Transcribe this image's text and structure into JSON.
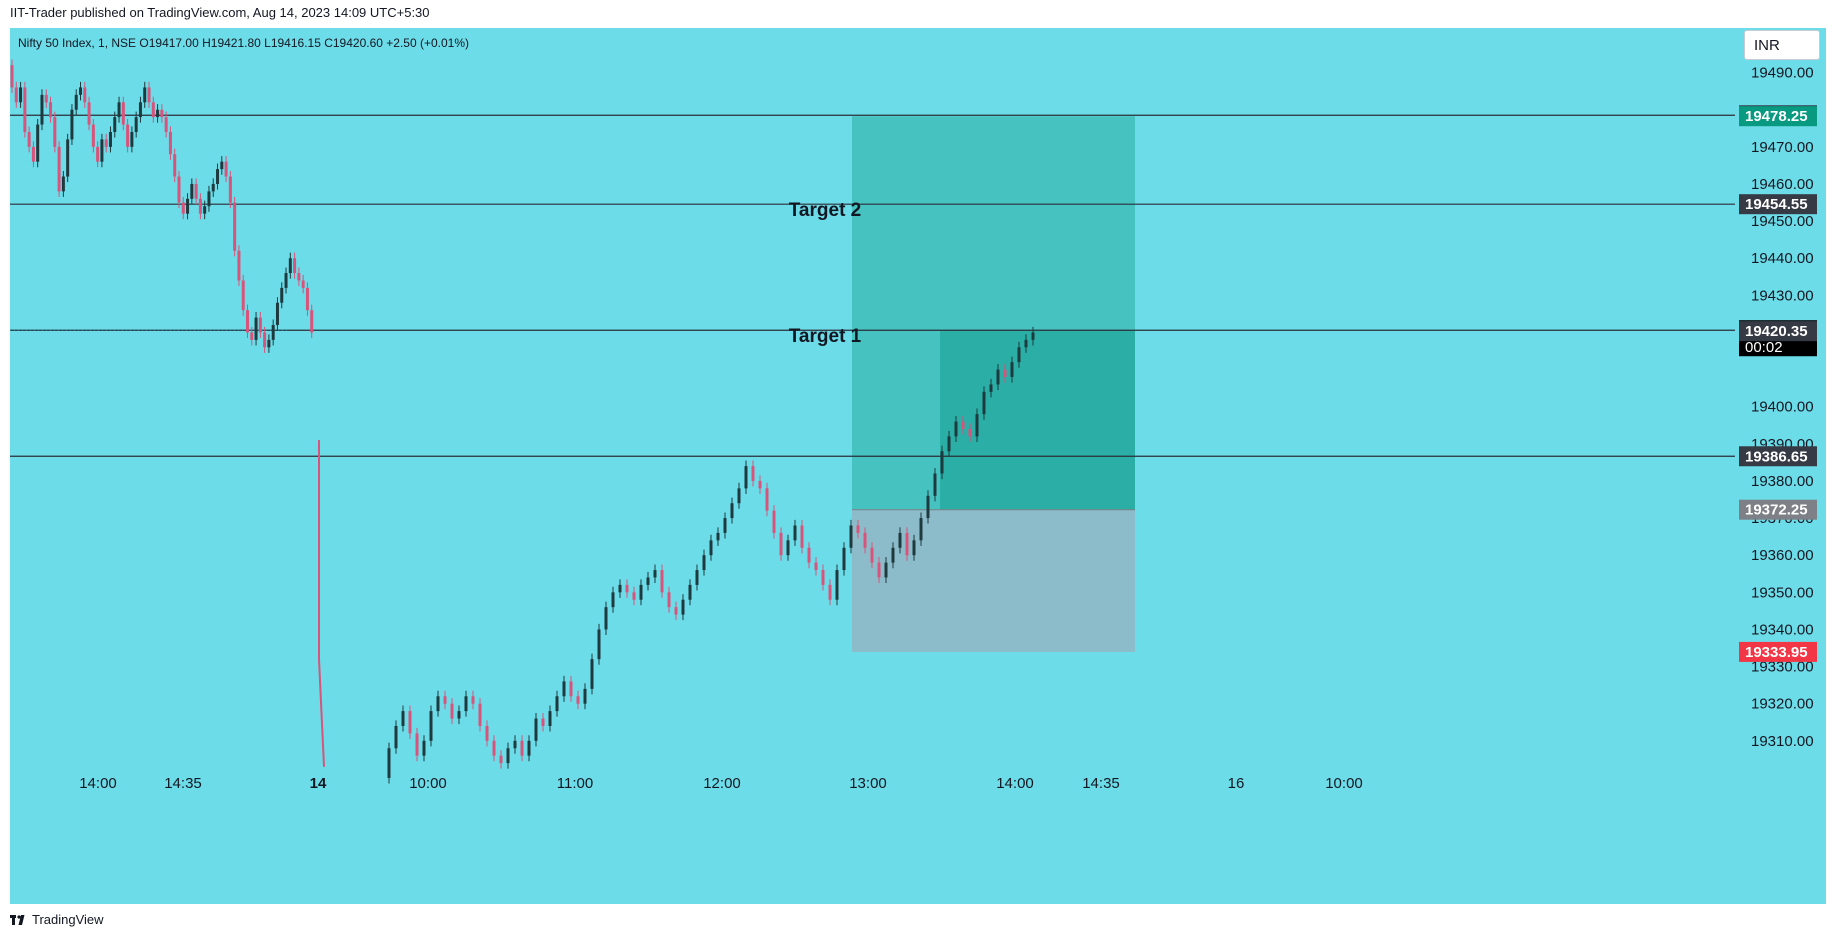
{
  "header": {
    "publisher_line": "IIT-Trader published on TradingView.com, Aug 14, 2023 14:09 UTC+5:30",
    "symbol_line": "Nifty 50 Index, 1, NSE  O19417.00  H19421.80  L19416.15  C19420.60  +2.50 (+0.01%)"
  },
  "toolbar": {
    "currency": "INR"
  },
  "footer": {
    "brand": "TradingView"
  },
  "colors": {
    "background": "#6cdce8",
    "up_candle": "#1f3a3f",
    "down_candle": "#d9537a",
    "target_zone": "#46c2c0",
    "target_zone_filled": "#2aaea6",
    "stop_zone": "#8cbcc9",
    "hline": "#2a2e39"
  },
  "chart_data": {
    "type": "candlestick",
    "title": "Nifty 50 Index, 1, NSE",
    "ylim": [
      19303,
      19497
    ],
    "y_ticks": [
      "19490.00",
      "19470.00",
      "19460.00",
      "19450.00",
      "19440.00",
      "19430.00",
      "19400.00",
      "19390.00",
      "19380.00",
      "19370.00",
      "19360.00",
      "19350.00",
      "19340.00",
      "19330.00",
      "19320.00",
      "19310.00"
    ],
    "x_ticks": [
      "14:00",
      "14:35",
      "14",
      "10:00",
      "11:00",
      "12:00",
      "13:00",
      "14:00",
      "14:35",
      "16",
      "10:00"
    ],
    "last_ohlc": {
      "open": 19417.0,
      "high": 19421.8,
      "low": 19416.15,
      "close": 19420.6,
      "change": 2.5,
      "change_pct": "+0.01%"
    },
    "price_path": {
      "session1": [
        19492,
        19486,
        19482,
        19486,
        19474,
        19470,
        19466,
        19476,
        19484,
        19482,
        19478,
        19470,
        19458,
        19462,
        19472,
        19480,
        19484,
        19486,
        19482,
        19476,
        19470,
        19466,
        19472,
        19470,
        19474,
        19478,
        19482,
        19476,
        19470,
        19474,
        19478,
        19482,
        19486,
        19482,
        19478,
        19480,
        19478,
        19474,
        19468,
        19462,
        19455,
        19452,
        19456,
        19460,
        19456,
        19452,
        19454,
        19458,
        19460,
        19464,
        19466,
        19462,
        19455,
        19442,
        19434,
        19426,
        19420,
        19418,
        19424,
        19420,
        19416,
        19418,
        19422,
        19428,
        19432,
        19436,
        19440,
        19436,
        19434,
        19432,
        19426,
        19420
      ],
      "session2": [
        19300,
        19308,
        19314,
        19318,
        19312,
        19306,
        19310,
        19318,
        19322,
        19320,
        19316,
        19318,
        19322,
        19320,
        19314,
        19310,
        19306,
        19304,
        19308,
        19310,
        19306,
        19310,
        19316,
        19314,
        19318,
        19322,
        19326,
        19322,
        19320,
        19324,
        19332,
        19340,
        19346,
        19350,
        19352,
        19350,
        19348,
        19352,
        19354,
        19356,
        19350,
        19346,
        19344,
        19348,
        19352,
        19356,
        19360,
        19364,
        19366,
        19370,
        19374,
        19378,
        19384,
        19380,
        19378,
        19372,
        19366,
        19360,
        19364,
        19368,
        19362,
        19358,
        19356,
        19352,
        19348,
        19356,
        19362,
        19368,
        19366,
        19362,
        19358,
        19354,
        19358,
        19362,
        19366,
        19360,
        19364,
        19370,
        19376,
        19382,
        19388,
        19392,
        19396,
        19394,
        19392,
        19398,
        19404,
        19406,
        19410,
        19408,
        19412,
        19416,
        19418,
        19420
      ]
    },
    "horizontal_lines": [
      {
        "value": 19478.5,
        "label": "19478.50",
        "color": "#363a45"
      },
      {
        "value": 19478.25,
        "label": "19478.25",
        "color": "#089981"
      },
      {
        "value": 19454.55,
        "label": "19454.55",
        "color": "#363a45"
      },
      {
        "value": 19420.6,
        "label": "19420.60",
        "color": "#000000",
        "countdown": "00:02"
      },
      {
        "value": 19420.35,
        "label": "19420.35",
        "color": "#363a45"
      },
      {
        "value": 19386.65,
        "label": "19386.65",
        "color": "#363a45"
      },
      {
        "value": 19372.25,
        "label": "19372.25",
        "color": "#7d8086"
      },
      {
        "value": 19333.95,
        "label": "19333.95",
        "color": "#f23645"
      }
    ],
    "position": {
      "entry": 19372.25,
      "target": 19478.25,
      "stop": 19333.95,
      "start_time": "12:55",
      "end_time": "14:50",
      "filled_from": "13:30"
    },
    "annotations": [
      {
        "text": "Target 2",
        "price": 19454.55
      },
      {
        "text": "Target 1",
        "price": 19420.6
      }
    ]
  }
}
